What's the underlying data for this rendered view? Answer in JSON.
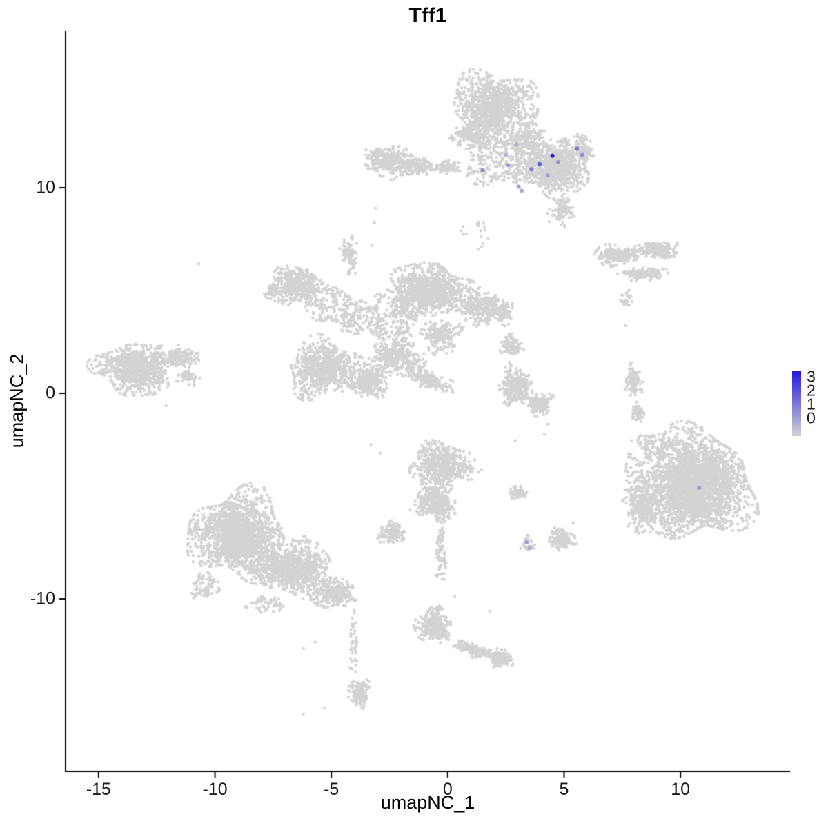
{
  "legend": {
    "labels": [
      3,
      2,
      1,
      0
    ]
  },
  "chart_data": {
    "type": "scatter",
    "title": "Tff1",
    "xlabel": "umapNC_1",
    "ylabel": "umapNC_2",
    "xlim": [
      -16.42,
      14.71
    ],
    "ylim": [
      -18.39,
      17.62
    ],
    "x_ticks": [
      -15,
      -10,
      -5,
      0,
      5,
      10
    ],
    "y_ticks": [
      -10,
      0,
      10
    ],
    "grid": false,
    "background_color": "#FFFFFF",
    "base_point_color": "#D3D3D3",
    "expression_scale": {
      "min": 0,
      "max": 3,
      "low": "#D3D3D3",
      "high": "#2319DC",
      "legend_position": "right"
    },
    "clusters": [
      {
        "cx": -2.6,
        "cy": 11.3,
        "rx": 1.05,
        "ry": 0.75,
        "n": 320
      },
      {
        "cx": -1.35,
        "cy": 11.05,
        "rx": 0.8,
        "ry": 0.5,
        "n": 150
      },
      {
        "cx": -0.1,
        "cy": 11.0,
        "rx": 0.7,
        "ry": 0.35,
        "n": 90
      },
      {
        "cx": 2.0,
        "cy": 14.0,
        "rx": 1.8,
        "ry": 1.65,
        "n": 1050
      },
      {
        "cx": 1.0,
        "cy": 12.6,
        "rx": 0.8,
        "ry": 0.8,
        "n": 160
      },
      {
        "cx": 2.2,
        "cy": 11.5,
        "rx": 1.4,
        "ry": 1.5,
        "n": 260,
        "dist": "u"
      },
      {
        "cx": 4.6,
        "cy": 11.0,
        "rx": 1.6,
        "ry": 1.4,
        "n": 950
      },
      {
        "cx": 3.4,
        "cy": 12.4,
        "rx": 0.95,
        "ry": 0.95,
        "n": 220
      },
      {
        "cx": 4.9,
        "cy": 8.9,
        "rx": 0.55,
        "ry": 0.8,
        "n": 90
      },
      {
        "cx": 5.85,
        "cy": 11.8,
        "rx": 0.5,
        "ry": 0.75,
        "n": 90
      },
      {
        "cx": 1.2,
        "cy": 7.7,
        "rx": 0.7,
        "ry": 0.6,
        "n": 16,
        "dist": "u"
      },
      {
        "cx": 7.3,
        "cy": 6.7,
        "rx": 1.05,
        "ry": 0.5,
        "n": 230
      },
      {
        "cx": 9.0,
        "cy": 7.0,
        "rx": 0.95,
        "ry": 0.45,
        "n": 190
      },
      {
        "cx": 8.4,
        "cy": 5.8,
        "rx": 1.0,
        "ry": 0.32,
        "n": 120
      },
      {
        "cx": 7.7,
        "cy": 4.6,
        "rx": 0.28,
        "ry": 0.38,
        "n": 22,
        "dist": "u"
      },
      {
        "cx": -6.5,
        "cy": 5.2,
        "rx": 1.3,
        "ry": 0.9,
        "n": 480
      },
      {
        "cx": -4.2,
        "cy": 6.7,
        "rx": 0.4,
        "ry": 0.95,
        "n": 90
      },
      {
        "cx": -5.0,
        "cy": 4.2,
        "rx": 1.05,
        "ry": 0.85,
        "n": 140,
        "dist": "u"
      },
      {
        "cx": -0.8,
        "cy": 5.0,
        "rx": 1.75,
        "ry": 1.3,
        "n": 1050
      },
      {
        "cx": 1.4,
        "cy": 4.2,
        "rx": 1.2,
        "ry": 0.8,
        "n": 300
      },
      {
        "cx": 2.4,
        "cy": 3.9,
        "rx": 0.5,
        "ry": 0.5,
        "n": 70
      },
      {
        "cx": -2.9,
        "cy": 3.7,
        "rx": 1.6,
        "ry": 1.15,
        "n": 300,
        "dist": "u"
      },
      {
        "cx": -5.3,
        "cy": 1.2,
        "rx": 1.55,
        "ry": 1.4,
        "n": 800
      },
      {
        "cx": -3.4,
        "cy": 0.6,
        "rx": 1.0,
        "ry": 0.8,
        "n": 260
      },
      {
        "cx": -2.2,
        "cy": 1.8,
        "rx": 1.2,
        "ry": 1.0,
        "n": 360
      },
      {
        "cx": -0.85,
        "cy": 0.7,
        "rx": 1.3,
        "ry": 0.45,
        "n": 170,
        "rot": -28
      },
      {
        "cx": -0.3,
        "cy": 2.8,
        "rx": 0.85,
        "ry": 0.85,
        "n": 190
      },
      {
        "cx": -13.4,
        "cy": 1.2,
        "rx": 1.7,
        "ry": 1.25,
        "n": 900
      },
      {
        "cx": -11.5,
        "cy": 1.75,
        "rx": 0.9,
        "ry": 0.5,
        "n": 150
      },
      {
        "cx": -11.1,
        "cy": 0.8,
        "rx": 0.5,
        "ry": 0.4,
        "n": 60
      },
      {
        "cx": 2.7,
        "cy": 2.3,
        "rx": 0.52,
        "ry": 0.5,
        "n": 110
      },
      {
        "cx": 2.9,
        "cy": 0.4,
        "rx": 0.7,
        "ry": 0.92,
        "n": 290
      },
      {
        "cx": 3.9,
        "cy": -0.5,
        "rx": 0.6,
        "ry": 0.55,
        "n": 150
      },
      {
        "cx": 8.0,
        "cy": 0.6,
        "rx": 0.36,
        "ry": 0.78,
        "n": 110
      },
      {
        "cx": 8.15,
        "cy": -0.9,
        "rx": 0.3,
        "ry": 0.5,
        "n": 70
      },
      {
        "cx": 10.6,
        "cy": -4.5,
        "rx": 2.5,
        "ry": 2.6,
        "n": 3000
      },
      {
        "cx": 8.4,
        "cy": -5.6,
        "rx": 0.85,
        "ry": 1.15,
        "n": 260
      },
      {
        "cx": 8.9,
        "cy": -2.6,
        "rx": 0.7,
        "ry": 0.7,
        "n": 110,
        "dist": "u"
      },
      {
        "cx": 8.1,
        "cy": -3.9,
        "rx": 0.55,
        "ry": 0.95,
        "n": 55,
        "dist": "u"
      },
      {
        "cx": -0.2,
        "cy": -3.5,
        "rx": 1.45,
        "ry": 1.05,
        "n": 580
      },
      {
        "cx": -0.5,
        "cy": -5.3,
        "rx": 0.95,
        "ry": 0.9,
        "n": 360
      },
      {
        "cx": -0.3,
        "cy": -7.9,
        "rx": 0.22,
        "ry": 1.35,
        "n": 75,
        "dist": "u"
      },
      {
        "cx": -2.4,
        "cy": -6.8,
        "rx": 0.55,
        "ry": 0.55,
        "n": 140
      },
      {
        "cx": -9.0,
        "cy": -6.9,
        "rx": 2.05,
        "ry": 2.1,
        "n": 1800
      },
      {
        "cx": -6.6,
        "cy": -8.5,
        "rx": 1.6,
        "ry": 1.35,
        "n": 900
      },
      {
        "cx": -4.9,
        "cy": -9.7,
        "rx": 1.0,
        "ry": 0.75,
        "n": 300
      },
      {
        "cx": -10.4,
        "cy": -9.4,
        "rx": 0.65,
        "ry": 0.6,
        "n": 70,
        "dist": "u"
      },
      {
        "cx": -7.8,
        "cy": -10.3,
        "rx": 0.85,
        "ry": 0.4,
        "n": 55,
        "dist": "u"
      },
      {
        "cx": -4.05,
        "cy": -12.3,
        "rx": 0.18,
        "ry": 1.45,
        "n": 42,
        "dist": "u"
      },
      {
        "cx": -3.8,
        "cy": -14.6,
        "rx": 0.45,
        "ry": 0.72,
        "n": 150
      },
      {
        "cx": -0.6,
        "cy": -11.3,
        "rx": 0.78,
        "ry": 0.82,
        "n": 290
      },
      {
        "cx": 1.1,
        "cy": -12.5,
        "rx": 1.1,
        "ry": 0.32,
        "n": 160,
        "rot": -16
      },
      {
        "cx": 2.3,
        "cy": -12.9,
        "rx": 0.5,
        "ry": 0.45,
        "n": 140
      },
      {
        "cx": 4.9,
        "cy": -7.1,
        "rx": 0.58,
        "ry": 0.55,
        "n": 170
      },
      {
        "cx": 3.0,
        "cy": -4.85,
        "rx": 0.42,
        "ry": 0.3,
        "n": 70
      },
      {
        "cx": 3.42,
        "cy": -7.35,
        "rx": 0.3,
        "ry": 0.38,
        "n": 26,
        "dist": "u"
      }
    ],
    "singles": [
      [
        -10.7,
        6.3
      ],
      [
        -3.1,
        9.0
      ],
      [
        -3.15,
        8.3
      ],
      [
        -3.25,
        7.2
      ],
      [
        7.7,
        4.9
      ],
      [
        7.62,
        4.4
      ],
      [
        7.65,
        3.3
      ],
      [
        4.15,
        -2.0
      ],
      [
        4.3,
        -1.5
      ],
      [
        2.9,
        -2.3
      ],
      [
        -3.3,
        -2.5
      ],
      [
        -2.9,
        -2.9
      ],
      [
        7.9,
        -2.3
      ],
      [
        8.05,
        -3.15
      ],
      [
        -6.2,
        -12.4
      ],
      [
        -5.7,
        -12.1
      ],
      [
        -6.2,
        -15.6
      ],
      [
        -5.3,
        -15.3
      ],
      [
        0.3,
        -9.9
      ],
      [
        1.8,
        -10.6
      ],
      [
        5.4,
        -6.3
      ],
      [
        -12.1,
        -0.6
      ]
    ],
    "expressing_cells": [
      {
        "x": 4.5,
        "y": 11.55,
        "value": 3
      },
      {
        "x": 3.95,
        "y": 11.15,
        "value": 2
      },
      {
        "x": 5.55,
        "y": 11.9,
        "value": 1.5
      },
      {
        "x": 5.78,
        "y": 11.6,
        "value": 1.2
      },
      {
        "x": 3.6,
        "y": 10.9,
        "value": 1.5
      },
      {
        "x": 4.75,
        "y": 11.25,
        "value": 1
      },
      {
        "x": 4.3,
        "y": 10.6,
        "value": 0.8
      },
      {
        "x": 2.6,
        "y": 11.1,
        "value": 1
      },
      {
        "x": 1.5,
        "y": 10.85,
        "value": 1.2
      },
      {
        "x": 3.05,
        "y": 10.05,
        "value": 0.9
      },
      {
        "x": 3.18,
        "y": 9.85,
        "value": 0.7
      },
      {
        "x": 2.5,
        "y": 11.6,
        "value": 0.6
      },
      {
        "x": 2.95,
        "y": 12.1,
        "value": 0.6
      },
      {
        "x": 10.8,
        "y": -4.6,
        "value": 0.9
      },
      {
        "x": 3.4,
        "y": -7.25,
        "value": 0.9
      },
      {
        "x": 3.52,
        "y": -7.52,
        "value": 0.6
      }
    ]
  }
}
